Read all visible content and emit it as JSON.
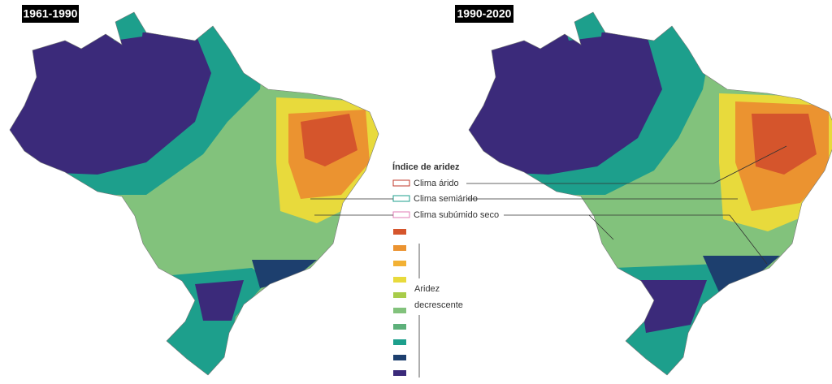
{
  "panels": {
    "left_title": "1961-1990",
    "right_title": "1990-2020"
  },
  "legend": {
    "title": "Índice de aridez",
    "items": [
      "Clima árido",
      "Clima semiárido",
      "Clima subúmido seco"
    ],
    "scale_labels": [
      "Aridez",
      "decrescente"
    ]
  }
}
